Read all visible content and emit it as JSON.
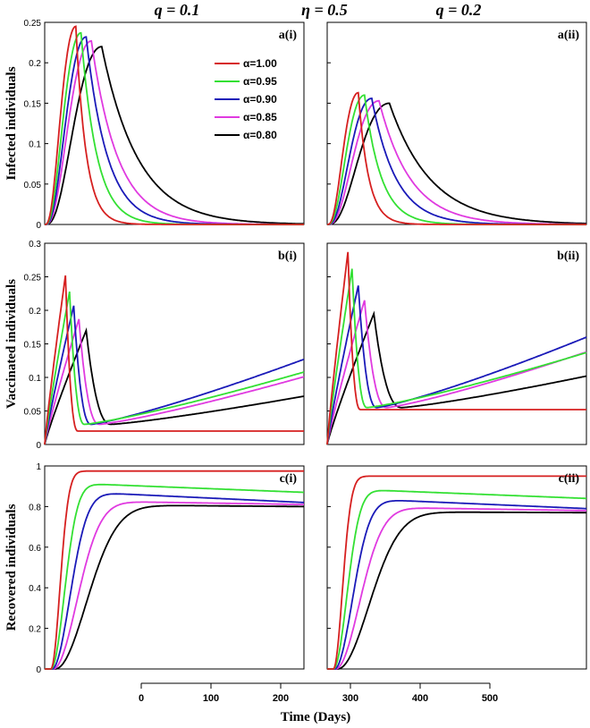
{
  "headers": {
    "left": "q = 0.1",
    "center": "η = 0.5",
    "right": "q = 0.2"
  },
  "legend": {
    "items": [
      {
        "label": "α=1.00",
        "color": "#d62020"
      },
      {
        "label": "α=0.95",
        "color": "#33e033"
      },
      {
        "label": "α=0.90",
        "color": "#1a1ab8"
      },
      {
        "label": "α=0.85",
        "color": "#e03ae0"
      },
      {
        "label": "α=0.80",
        "color": "#000000"
      }
    ]
  },
  "time_axis": {
    "label": "Time (Days)",
    "ticks": [
      "0",
      "100",
      "200",
      "300",
      "400",
      "500"
    ]
  },
  "chart_data": [
    {
      "type": "line",
      "row": "a",
      "column": "i",
      "panel_label": "a(i)",
      "ylabel": "Infected individuals",
      "ylim": [
        0,
        0.25
      ],
      "yticks": [
        "0",
        "0.05",
        "0.1",
        "0.15",
        "0.2",
        "0.25"
      ],
      "xlim": [
        0,
        250
      ],
      "series": [
        {
          "name": "α=1.00",
          "peak_time": 30,
          "peak_value": 0.245
        },
        {
          "name": "α=0.95",
          "peak_time": 35,
          "peak_value": 0.237
        },
        {
          "name": "α=0.90",
          "peak_time": 40,
          "peak_value": 0.232
        },
        {
          "name": "α=0.85",
          "peak_time": 45,
          "peak_value": 0.227
        },
        {
          "name": "α=0.80",
          "peak_time": 55,
          "peak_value": 0.22
        }
      ]
    },
    {
      "type": "line",
      "row": "a",
      "column": "ii",
      "panel_label": "a(ii)",
      "ylabel": "",
      "ylim": [
        0,
        0.25
      ],
      "yticks": [],
      "xlim": [
        0,
        250
      ],
      "series": [
        {
          "name": "α=1.00",
          "peak_time": 30,
          "peak_value": 0.163
        },
        {
          "name": "α=0.95",
          "peak_time": 36,
          "peak_value": 0.16
        },
        {
          "name": "α=0.90",
          "peak_time": 43,
          "peak_value": 0.156
        },
        {
          "name": "α=0.85",
          "peak_time": 50,
          "peak_value": 0.153
        },
        {
          "name": "α=0.80",
          "peak_time": 60,
          "peak_value": 0.15
        }
      ]
    },
    {
      "type": "line",
      "row": "b",
      "column": "i",
      "panel_label": "b(i)",
      "ylabel": "Vaccinated individuals",
      "ylim": [
        0,
        0.3
      ],
      "yticks": [
        "0",
        "0.05",
        "0.1",
        "0.15",
        "0.2",
        "0.25",
        "0.3"
      ],
      "xlim": [
        0,
        250
      ],
      "series": [
        {
          "name": "α=1.00",
          "peak_time": 20,
          "peak_value": 0.252,
          "end_value": 0.02
        },
        {
          "name": "α=0.95",
          "peak_time": 24,
          "peak_value": 0.228,
          "end_value": 0.108
        },
        {
          "name": "α=0.90",
          "peak_time": 28,
          "peak_value": 0.207,
          "end_value": 0.127
        },
        {
          "name": "α=0.85",
          "peak_time": 33,
          "peak_value": 0.187,
          "end_value": 0.101
        },
        {
          "name": "α=0.80",
          "peak_time": 40,
          "peak_value": 0.17,
          "end_value": 0.072
        }
      ]
    },
    {
      "type": "line",
      "row": "b",
      "column": "ii",
      "panel_label": "b(ii)",
      "ylabel": "",
      "ylim": [
        0,
        0.3
      ],
      "yticks": [],
      "xlim": [
        0,
        250
      ],
      "series": [
        {
          "name": "α=1.00",
          "peak_time": 20,
          "peak_value": 0.287,
          "end_value": 0.052
        },
        {
          "name": "α=0.95",
          "peak_time": 24,
          "peak_value": 0.262,
          "end_value": 0.137
        },
        {
          "name": "α=0.90",
          "peak_time": 30,
          "peak_value": 0.237,
          "end_value": 0.16
        },
        {
          "name": "α=0.85",
          "peak_time": 36,
          "peak_value": 0.215,
          "end_value": 0.138
        },
        {
          "name": "α=0.80",
          "peak_time": 45,
          "peak_value": 0.195,
          "end_value": 0.102
        }
      ]
    },
    {
      "type": "line",
      "row": "c",
      "column": "i",
      "panel_label": "c(i)",
      "ylabel": "Recovered individuals",
      "ylim": [
        0,
        1
      ],
      "yticks": [
        "0",
        "0.2",
        "0.4",
        "0.6",
        "0.8",
        "1"
      ],
      "xlim": [
        0,
        250
      ],
      "series": [
        {
          "name": "α=1.00",
          "plateau": 0.975,
          "end_value": 0.975
        },
        {
          "name": "α=0.95",
          "plateau": 0.92,
          "end_value": 0.87
        },
        {
          "name": "α=0.90",
          "plateau": 0.88,
          "end_value": 0.82
        },
        {
          "name": "α=0.85",
          "plateau": 0.83,
          "end_value": 0.81
        },
        {
          "name": "α=0.80",
          "plateau": 0.81,
          "end_value": 0.8
        }
      ]
    },
    {
      "type": "line",
      "row": "c",
      "column": "ii",
      "panel_label": "c(ii)",
      "ylabel": "",
      "ylim": [
        0,
        1
      ],
      "yticks": [],
      "xlim": [
        0,
        250
      ],
      "series": [
        {
          "name": "α=1.00",
          "plateau": 0.95,
          "end_value": 0.95
        },
        {
          "name": "α=0.95",
          "plateau": 0.89,
          "end_value": 0.84
        },
        {
          "name": "α=0.90",
          "plateau": 0.845,
          "end_value": 0.79
        },
        {
          "name": "α=0.85",
          "plateau": 0.8,
          "end_value": 0.78
        },
        {
          "name": "α=0.80",
          "plateau": 0.775,
          "end_value": 0.77
        }
      ]
    }
  ]
}
